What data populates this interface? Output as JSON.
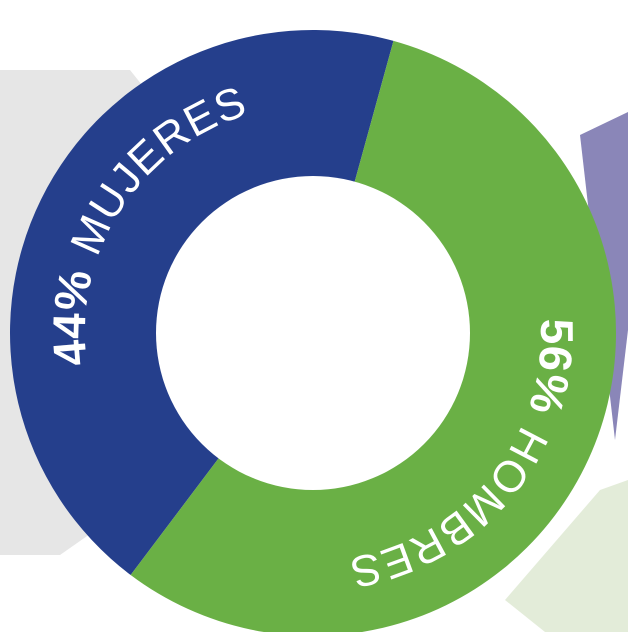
{
  "chart_data": {
    "type": "pie",
    "variant": "donut",
    "categories": [
      "MUJERES",
      "HOMBRES"
    ],
    "values": [
      44,
      56
    ],
    "segments": [
      {
        "name": "MUJERES",
        "value": 44,
        "label_pct": "44%",
        "label_word": "MUJERES",
        "color": "#253f8c"
      },
      {
        "name": "HOMBRES",
        "value": 56,
        "label_pct": "56%",
        "label_word": "HOMBRES",
        "color": "#6ab045"
      }
    ],
    "legend": "none"
  },
  "colors": {
    "map_gray": "#e6e6e6",
    "purple_shape": "#8a86b8",
    "pale_green_shape": "#e3ecd9",
    "hole": "#ffffff"
  }
}
